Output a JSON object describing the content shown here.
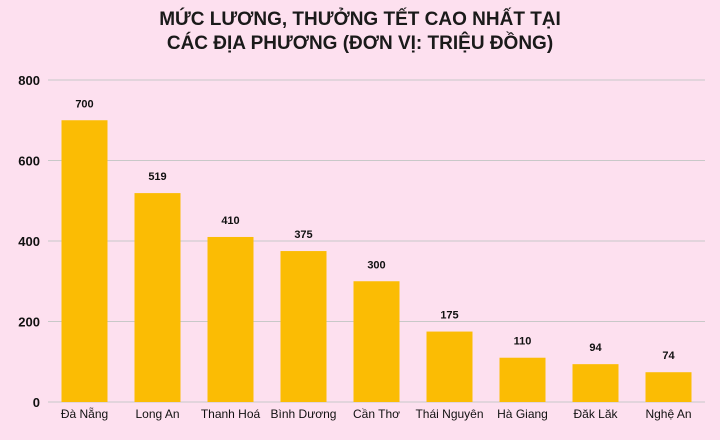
{
  "chart_data": {
    "type": "bar",
    "title_lines": [
      "MỨC LƯƠNG, THƯỞNG TẾT CAO NHẤT TẠI",
      "CÁC ĐỊA PHƯƠNG (ĐƠN VỊ: TRIỆU ĐỒNG)"
    ],
    "categories": [
      "Đà Nẵng",
      "Long An",
      "Thanh Hoá",
      "Bình Dương",
      "Cần Thơ",
      "Thái Nguyên",
      "Hà Giang",
      "Đăk Lăk",
      "Nghệ An"
    ],
    "values": [
      700,
      519,
      410,
      375,
      300,
      175,
      110,
      94,
      74
    ],
    "value_labels": [
      "700",
      "519",
      "410",
      "375",
      "300",
      "175",
      "110",
      "94",
      "74"
    ],
    "ylim": [
      0,
      800
    ],
    "yticks": [
      0,
      200,
      400,
      600,
      800
    ],
    "ytick_labels": [
      "0",
      "200",
      "400",
      "600",
      "800"
    ],
    "grid": true,
    "bar_color": "#fbbc04",
    "grid_color": "#c8c8c8",
    "background": "#fde0ef"
  }
}
